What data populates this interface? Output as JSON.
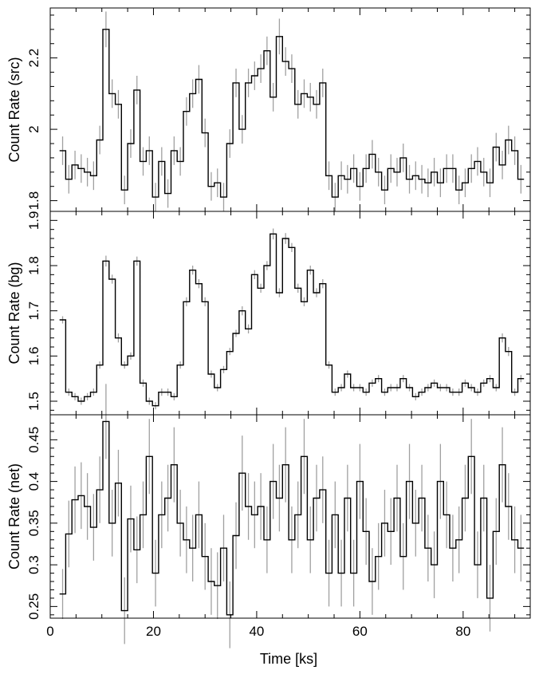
{
  "chart_data": {
    "type": "line",
    "style": "step",
    "xlabel": "Time [ks]",
    "xlim": [
      0,
      93
    ],
    "xticks": [
      "0",
      "20",
      "40",
      "60",
      "80"
    ],
    "xtick_values": [
      0,
      20,
      40,
      60,
      80
    ],
    "bin_width": 1.2,
    "line_color": "#000000",
    "error_color": "#a0a0a0",
    "x": [
      2.4,
      3.6,
      4.8,
      6.0,
      7.2,
      8.4,
      9.6,
      10.8,
      12.0,
      13.2,
      14.4,
      15.6,
      16.8,
      18.0,
      19.2,
      20.4,
      21.6,
      22.8,
      24.0,
      25.2,
      26.4,
      27.6,
      28.8,
      30.0,
      31.2,
      32.4,
      33.6,
      34.8,
      36.0,
      37.2,
      38.4,
      39.6,
      40.8,
      42.0,
      43.2,
      44.4,
      45.6,
      46.8,
      48.0,
      49.2,
      50.4,
      51.6,
      52.8,
      54.0,
      55.2,
      56.4,
      57.6,
      58.8,
      60.0,
      61.2,
      62.4,
      63.6,
      64.8,
      66.0,
      67.2,
      68.4,
      69.6,
      70.8,
      72.0,
      73.2,
      74.4,
      75.6,
      76.8,
      78.0,
      79.2,
      80.4,
      81.6,
      82.8,
      84.0,
      85.2,
      86.4,
      87.6,
      88.8,
      90.0,
      91.2
    ],
    "panels": [
      {
        "ylabel": "Count Rate (src)",
        "ylim": [
          1.77,
          2.34
        ],
        "yticks": [
          "1.8",
          "2",
          "2.2"
        ],
        "ytick_values": [
          1.8,
          2.0,
          2.2
        ],
        "y": [
          1.94,
          1.86,
          1.9,
          1.89,
          1.88,
          1.87,
          1.97,
          2.28,
          2.1,
          2.07,
          1.83,
          1.96,
          2.11,
          1.91,
          1.94,
          1.81,
          1.91,
          1.82,
          1.94,
          1.91,
          2.05,
          2.1,
          2.14,
          1.99,
          1.84,
          1.85,
          1.81,
          1.96,
          2.13,
          2.0,
          2.13,
          2.15,
          2.17,
          2.22,
          2.09,
          2.26,
          2.19,
          2.17,
          2.07,
          2.1,
          2.09,
          2.07,
          2.13,
          1.87,
          1.81,
          1.87,
          1.86,
          1.89,
          1.84,
          1.89,
          1.93,
          1.88,
          1.83,
          1.89,
          1.88,
          1.92,
          1.86,
          1.87,
          1.86,
          1.85,
          1.88,
          1.85,
          1.89,
          1.89,
          1.83,
          1.85,
          1.89,
          1.91,
          1.88,
          1.85,
          1.95,
          1.9,
          1.97,
          1.94,
          1.86
        ],
        "errors": [
          0.04,
          0.04,
          0.04,
          0.04,
          0.04,
          0.04,
          0.04,
          0.05,
          0.04,
          0.04,
          0.04,
          0.04,
          0.04,
          0.04,
          0.04,
          0.04,
          0.04,
          0.04,
          0.04,
          0.04,
          0.04,
          0.04,
          0.04,
          0.04,
          0.04,
          0.04,
          0.04,
          0.04,
          0.04,
          0.04,
          0.04,
          0.04,
          0.04,
          0.04,
          0.04,
          0.05,
          0.04,
          0.04,
          0.04,
          0.04,
          0.04,
          0.04,
          0.04,
          0.04,
          0.04,
          0.04,
          0.04,
          0.04,
          0.04,
          0.04,
          0.04,
          0.04,
          0.04,
          0.04,
          0.04,
          0.04,
          0.04,
          0.04,
          0.04,
          0.04,
          0.04,
          0.04,
          0.04,
          0.04,
          0.04,
          0.04,
          0.04,
          0.04,
          0.04,
          0.04,
          0.04,
          0.04,
          0.04,
          0.04,
          0.04
        ]
      },
      {
        "ylabel": "Count Rate (bg)",
        "ylim": [
          1.47,
          1.92
        ],
        "yticks": [
          "1.5",
          "1.6",
          "1.7",
          "1.8",
          "1.9"
        ],
        "ytick_values": [
          1.5,
          1.6,
          1.7,
          1.8,
          1.9
        ],
        "y": [
          1.68,
          1.52,
          1.51,
          1.5,
          1.51,
          1.52,
          1.58,
          1.81,
          1.77,
          1.64,
          1.58,
          1.6,
          1.81,
          1.54,
          1.5,
          1.49,
          1.52,
          1.52,
          1.51,
          1.58,
          1.72,
          1.79,
          1.76,
          1.72,
          1.56,
          1.53,
          1.57,
          1.61,
          1.65,
          1.7,
          1.66,
          1.78,
          1.75,
          1.8,
          1.87,
          1.74,
          1.86,
          1.84,
          1.75,
          1.72,
          1.79,
          1.74,
          1.76,
          1.58,
          1.52,
          1.53,
          1.56,
          1.53,
          1.53,
          1.52,
          1.54,
          1.55,
          1.52,
          1.53,
          1.53,
          1.55,
          1.53,
          1.51,
          1.52,
          1.53,
          1.54,
          1.53,
          1.53,
          1.52,
          1.52,
          1.54,
          1.53,
          1.52,
          1.54,
          1.55,
          1.53,
          1.64,
          1.61,
          1.52,
          1.55
        ],
        "errors": [
          0.008,
          0.008,
          0.008,
          0.008,
          0.008,
          0.008,
          0.008,
          0.012,
          0.01,
          0.01,
          0.008,
          0.008,
          0.01,
          0.008,
          0.008,
          0.008,
          0.008,
          0.008,
          0.008,
          0.008,
          0.01,
          0.01,
          0.01,
          0.01,
          0.008,
          0.008,
          0.008,
          0.008,
          0.008,
          0.01,
          0.01,
          0.01,
          0.01,
          0.01,
          0.012,
          0.01,
          0.012,
          0.01,
          0.01,
          0.01,
          0.01,
          0.01,
          0.01,
          0.008,
          0.008,
          0.008,
          0.008,
          0.008,
          0.008,
          0.008,
          0.008,
          0.008,
          0.008,
          0.008,
          0.008,
          0.008,
          0.008,
          0.008,
          0.008,
          0.008,
          0.008,
          0.008,
          0.008,
          0.008,
          0.008,
          0.008,
          0.008,
          0.008,
          0.008,
          0.008,
          0.008,
          0.01,
          0.01,
          0.008,
          0.008
        ]
      },
      {
        "ylabel": "Count Rate (net)",
        "ylim": [
          0.236,
          0.48
        ],
        "yticks": [
          "0.25",
          "0.3",
          "0.35",
          "0.4",
          "0.45"
        ],
        "ytick_values": [
          0.25,
          0.3,
          0.35,
          0.4,
          0.45
        ],
        "y": [
          0.265,
          0.337,
          0.378,
          0.383,
          0.37,
          0.345,
          0.39,
          0.472,
          0.35,
          0.398,
          0.245,
          0.355,
          0.318,
          0.36,
          0.43,
          0.29,
          0.36,
          0.38,
          0.42,
          0.35,
          0.33,
          0.32,
          0.36,
          0.31,
          0.28,
          0.275,
          0.32,
          0.24,
          0.335,
          0.41,
          0.37,
          0.36,
          0.37,
          0.33,
          0.4,
          0.38,
          0.42,
          0.33,
          0.36,
          0.43,
          0.33,
          0.38,
          0.39,
          0.29,
          0.36,
          0.29,
          0.38,
          0.29,
          0.4,
          0.34,
          0.28,
          0.31,
          0.35,
          0.34,
          0.38,
          0.31,
          0.4,
          0.35,
          0.38,
          0.32,
          0.3,
          0.4,
          0.36,
          0.32,
          0.33,
          0.38,
          0.43,
          0.3,
          0.38,
          0.26,
          0.34,
          0.42,
          0.37,
          0.33,
          0.32
        ],
        "errors": [
          0.03,
          0.04,
          0.04,
          0.04,
          0.04,
          0.04,
          0.04,
          0.045,
          0.04,
          0.04,
          0.04,
          0.04,
          0.04,
          0.04,
          0.045,
          0.04,
          0.04,
          0.04,
          0.045,
          0.04,
          0.04,
          0.04,
          0.04,
          0.04,
          0.04,
          0.04,
          0.04,
          0.04,
          0.04,
          0.045,
          0.04,
          0.04,
          0.04,
          0.04,
          0.045,
          0.04,
          0.045,
          0.04,
          0.04,
          0.045,
          0.04,
          0.04,
          0.04,
          0.04,
          0.04,
          0.04,
          0.04,
          0.04,
          0.045,
          0.04,
          0.04,
          0.04,
          0.04,
          0.04,
          0.04,
          0.04,
          0.045,
          0.04,
          0.04,
          0.04,
          0.04,
          0.045,
          0.04,
          0.04,
          0.04,
          0.04,
          0.045,
          0.04,
          0.04,
          0.04,
          0.04,
          0.045,
          0.04,
          0.04,
          0.04
        ]
      }
    ]
  }
}
